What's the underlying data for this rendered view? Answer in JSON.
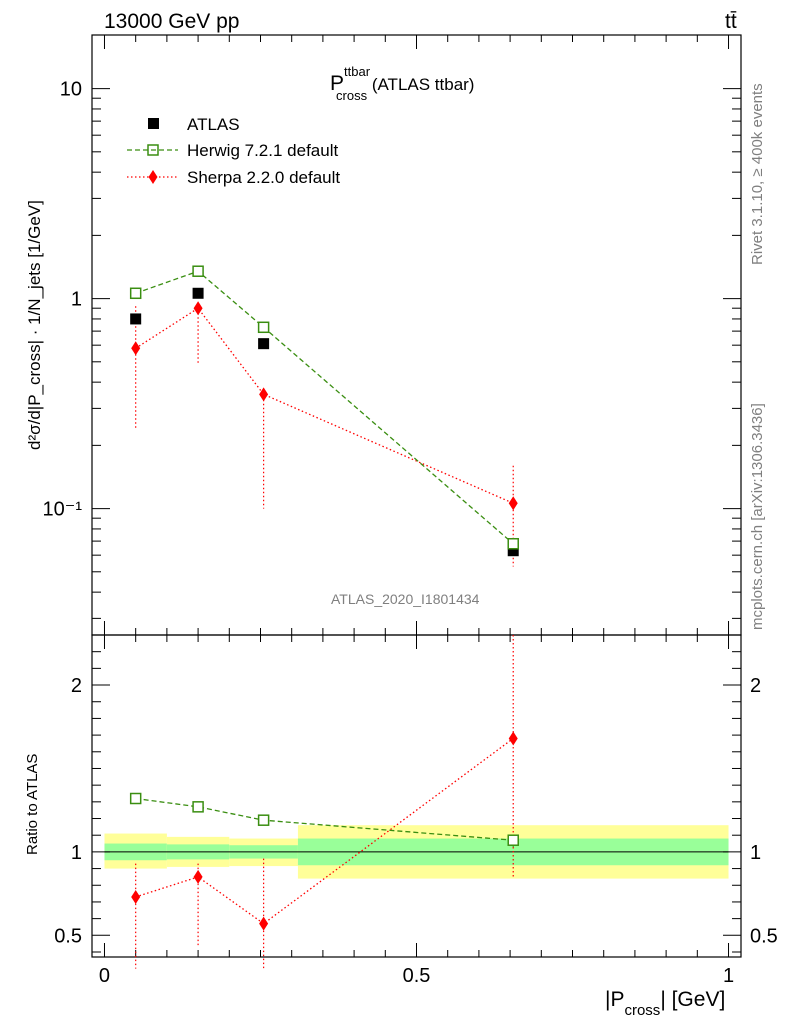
{
  "header": {
    "energy": "13000 GeV pp",
    "process": "tt̄"
  },
  "plot_title": {
    "main": "P",
    "sup": "ttbar",
    "sub": "cross",
    "suffix": " (ATLAS ttbar)"
  },
  "side_labels": {
    "rivet": "Rivet 3.1.10, ≥ 400k events",
    "mcplots": "mcplots.cern.ch [arXiv:1306.3436]"
  },
  "watermark": "ATLAS_2020_I1801434",
  "ylabel_main": "d²σ/d|P_cross|  · 1/N_jets   [1/GeV]",
  "ylabel_ratio": "Ratio to ATLAS",
  "xlabel": {
    "pre": "|P",
    "sub": "cross",
    "post": "| [GeV]"
  },
  "legend": [
    {
      "label": "ATLAS"
    },
    {
      "label": "Herwig 7.2.1 default"
    },
    {
      "label": "Sherpa 2.2.0 default"
    }
  ],
  "colors": {
    "atlas": "#000000",
    "herwig": "#3a8e11",
    "sherpa": "#ff0000",
    "band_inner": "#99ff99",
    "band_outer": "#ffff99"
  },
  "chart_data": {
    "type": "scatter",
    "x_range": [
      -0.02,
      1.02
    ],
    "x_ticks": [
      0,
      0.5,
      1
    ],
    "x_tick_labels": [
      "0",
      "0.5",
      "1"
    ],
    "main": {
      "yscale": "log",
      "y_range": [
        0.025,
        18
      ],
      "y_tick_labels": [
        "10⁻¹",
        "1",
        "10"
      ],
      "atlas": {
        "x": [
          0.05,
          0.15,
          0.255,
          0.655
        ],
        "y": [
          0.8,
          1.06,
          0.61,
          0.063
        ]
      },
      "herwig": {
        "x": [
          0.05,
          0.15,
          0.255,
          0.655
        ],
        "y": [
          1.06,
          1.35,
          0.73,
          0.068
        ]
      },
      "sherpa": {
        "x": [
          0.05,
          0.15,
          0.255,
          0.655
        ],
        "y": [
          0.58,
          0.9,
          0.35,
          0.106
        ],
        "err_lo": [
          0.24,
          0.49,
          0.1,
          0.053
        ],
        "err_hi": [
          0.92,
          0.93,
          0.36,
          0.16
        ]
      }
    },
    "ratio": {
      "y_range": [
        0.37,
        2.3
      ],
      "y_ticks": [
        0.5,
        1,
        2
      ],
      "y_tick_labels": [
        "0.5",
        "1",
        "2"
      ],
      "bands": [
        {
          "x0": 0.0,
          "x1": 0.1,
          "inner": [
            0.95,
            1.05
          ],
          "outer": [
            0.9,
            1.11
          ]
        },
        {
          "x0": 0.1,
          "x1": 0.2,
          "inner": [
            0.955,
            1.045
          ],
          "outer": [
            0.91,
            1.09
          ]
        },
        {
          "x0": 0.2,
          "x1": 0.31,
          "inner": [
            0.96,
            1.04
          ],
          "outer": [
            0.915,
            1.08
          ]
        },
        {
          "x0": 0.31,
          "x1": 1.0,
          "inner": [
            0.92,
            1.08
          ],
          "outer": [
            0.84,
            1.16
          ]
        }
      ],
      "herwig": {
        "x": [
          0.05,
          0.15,
          0.255,
          0.655
        ],
        "y": [
          1.32,
          1.27,
          1.19,
          1.07
        ],
        "err_lo": [
          1.29,
          1.25,
          1.16,
          1.03
        ],
        "err_hi": [
          1.35,
          1.3,
          1.22,
          1.1
        ]
      },
      "sherpa": {
        "x": [
          0.05,
          0.15,
          0.255,
          0.655
        ],
        "y": [
          0.73,
          0.85,
          0.57,
          1.68
        ],
        "err_lo": [
          0.3,
          0.44,
          0.3,
          0.84
        ],
        "err_hi": [
          0.93,
          0.93,
          0.96,
          2.3
        ]
      }
    }
  }
}
